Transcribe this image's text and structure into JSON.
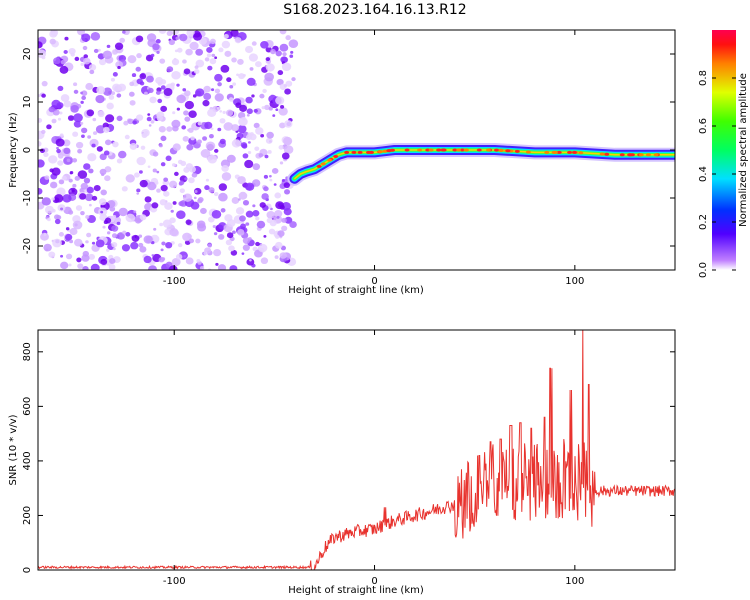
{
  "title": "S168.2023.164.16.13.R12",
  "chart_data": [
    {
      "type": "heatmap",
      "xlabel": "Height of straight line (km)",
      "ylabel": "Frequency (Hz)",
      "xlim": [
        -168,
        150
      ],
      "ylim": [
        -25,
        25
      ],
      "xticks": [
        -100,
        0,
        100
      ],
      "yticks": [
        -20,
        -10,
        0,
        10,
        20
      ],
      "noise_region_x": [
        -168,
        -40
      ],
      "signal_trace": {
        "x": [
          -40,
          -37,
          -34,
          -30,
          -26,
          -22,
          -18,
          -14,
          -10,
          -5,
          0,
          10,
          20,
          40,
          60,
          80,
          100,
          120,
          150
        ],
        "freq": [
          -6,
          -5,
          -4.5,
          -4,
          -3,
          -2,
          -1,
          -0.5,
          -0.5,
          -0.5,
          -0.5,
          0,
          0,
          0,
          0,
          -0.5,
          -0.5,
          -1,
          -1
        ]
      },
      "colorbar": {
        "label": "Normalized spectral amplitude",
        "ticks": [
          0.0,
          0.2,
          0.4,
          0.6,
          0.8
        ],
        "range": [
          0,
          1
        ]
      }
    },
    {
      "type": "line",
      "xlabel": "Height of straight line (km)",
      "ylabel": "SNR (10 * v/v)",
      "xlim": [
        -168,
        150
      ],
      "ylim": [
        0,
        880
      ],
      "xticks": [
        -100,
        0,
        100
      ],
      "yticks": [
        0,
        200,
        400,
        600,
        800
      ],
      "color": "#e8332e",
      "series": [
        {
          "x": [
            -168,
            -140,
            -100,
            -60,
            -30,
            -25,
            -20,
            -10,
            0,
            10,
            20,
            30,
            40,
            50,
            60,
            70,
            80,
            90,
            100,
            105,
            110,
            120,
            130,
            140,
            150
          ],
          "values": [
            10,
            10,
            10,
            10,
            10,
            80,
            120,
            140,
            150,
            180,
            200,
            220,
            240,
            300,
            320,
            330,
            330,
            330,
            330,
            330,
            290,
            290,
            290,
            290,
            290
          ],
          "spikes": [
            [
              5,
              230
            ],
            [
              35,
              245
            ],
            [
              45,
              330
            ],
            [
              52,
              420
            ],
            [
              58,
              470
            ],
            [
              63,
              480
            ],
            [
              68,
              530
            ],
            [
              73,
              540
            ],
            [
              78,
              520
            ],
            [
              85,
              560
            ],
            [
              88,
              740
            ],
            [
              94,
              480
            ],
            [
              98,
              660
            ],
            [
              101,
              600
            ],
            [
              104,
              880
            ],
            [
              107,
              680
            ]
          ]
        }
      ]
    }
  ],
  "colors": {
    "noise": "#7a00ff",
    "trace_core": "#ff2020",
    "snr_line": "#e8332e"
  }
}
